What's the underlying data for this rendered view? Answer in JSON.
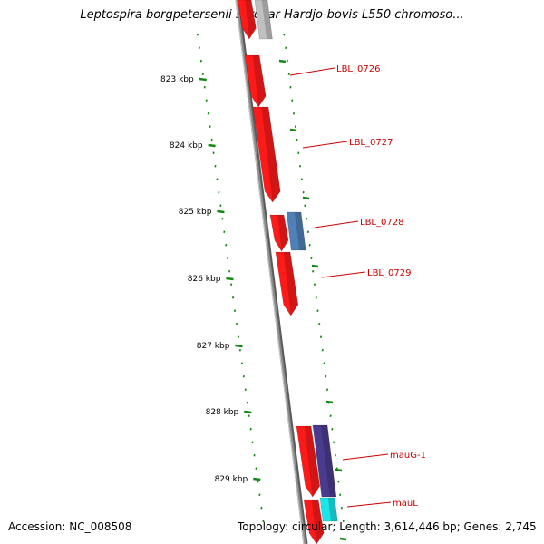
{
  "title": "Leptospira borgpetersenii serovar Hardjo-bovis L550 chromoso...",
  "footer": {
    "accession": "Accession: NC_008508",
    "summary": "Topology: circular; Length: 3,614,446 bp; Genes: 2,745"
  },
  "colors": {
    "backbone": "#8c8c8c",
    "tick": "#118811",
    "label": "#cc0000",
    "gene_red": "#ff1a1a",
    "gene_blue": "#4f81b8",
    "gene_purple": "#4b3b8f",
    "gene_cyan": "#19e6ea",
    "gene_grey": "#c0c0c0"
  },
  "axis": {
    "unit": "kbp",
    "tick_labels": [
      "823 kbp",
      "824 kbp",
      "825 kbp",
      "826 kbp",
      "827 kbp",
      "828 kbp",
      "829 kbp"
    ]
  },
  "genes": [
    {
      "label": "LBL_0726",
      "color": "gene_red"
    },
    {
      "label": "LBL_0727",
      "color": "gene_red"
    },
    {
      "label": "LBL_0728",
      "color": "gene_blue"
    },
    {
      "label": "LBL_0729",
      "color": "gene_red"
    },
    {
      "label": "mauG-1",
      "color": "gene_purple"
    },
    {
      "label": "mauL",
      "color": "gene_cyan"
    }
  ]
}
